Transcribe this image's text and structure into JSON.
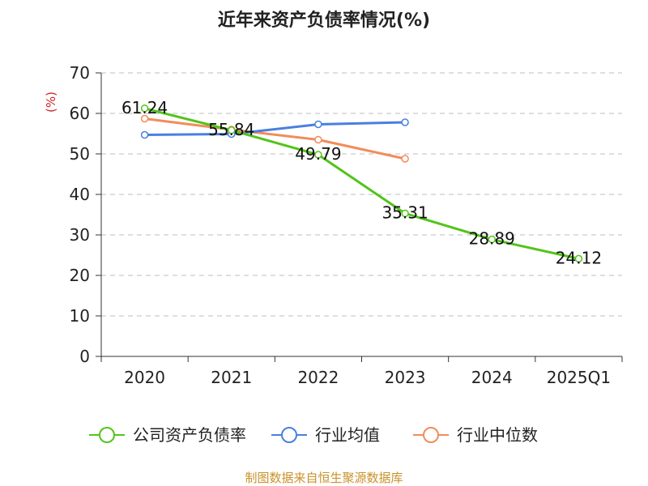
{
  "source_text": "制图数据来自恒生聚源数据库",
  "chart_data": {
    "type": "line",
    "title": "近年来资产负债率情况(%)",
    "ylabel": "(%)",
    "xlabel": "",
    "categories": [
      "2020",
      "2021",
      "2022",
      "2023",
      "2024",
      "2025Q1"
    ],
    "ylim": [
      0,
      70
    ],
    "yticks": [
      0,
      10,
      20,
      30,
      40,
      50,
      60,
      70
    ],
    "grid": true,
    "legend_position": "bottom",
    "series": [
      {
        "name": "公司资产负债率",
        "color": "#52c41a",
        "show_labels": true,
        "values": [
          61.24,
          55.84,
          49.79,
          35.31,
          28.89,
          24.12
        ]
      },
      {
        "name": "行业均值",
        "color": "#4a7fe0",
        "show_labels": false,
        "values": [
          54.7,
          54.9,
          57.3,
          57.8,
          null,
          null
        ]
      },
      {
        "name": "行业中位数",
        "color": "#f28c5a",
        "show_labels": false,
        "values": [
          58.7,
          56.0,
          53.5,
          48.8,
          null,
          null
        ]
      }
    ]
  }
}
